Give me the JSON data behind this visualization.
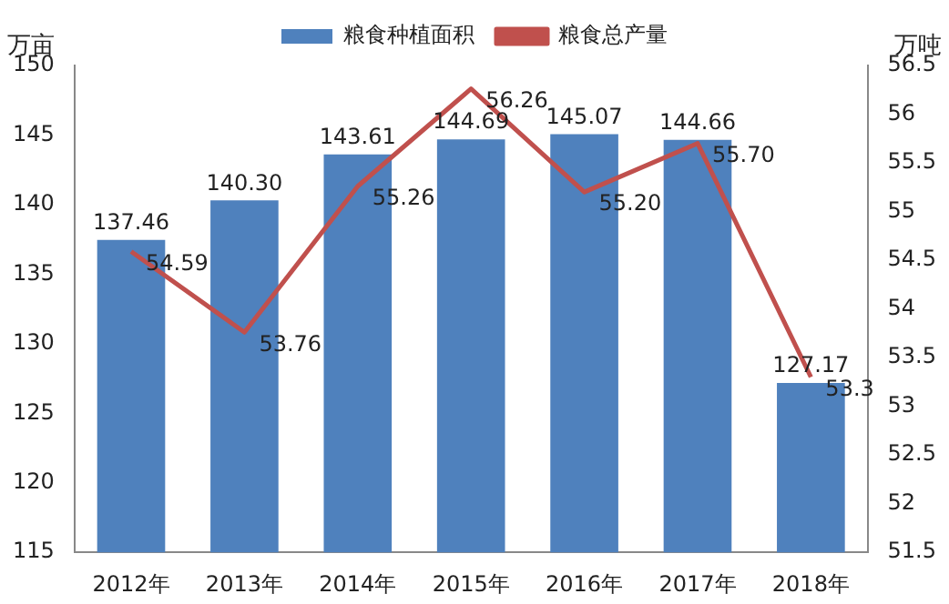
{
  "chart_data": {
    "type": "bar",
    "ylabel": "万亩",
    "y2label": "万吨",
    "categories": [
      "2012年",
      "2013年",
      "2014年",
      "2015年",
      "2016年",
      "2017年",
      "2018年"
    ],
    "series": [
      {
        "name": "粮食种植面积",
        "color": "#4f81bd",
        "values": [
          137.46,
          140.3,
          143.61,
          144.69,
          145.07,
          144.66,
          127.17
        ],
        "value_labels": [
          "137.46",
          "140.30",
          "143.61",
          "144.69",
          "145.07",
          "144.66",
          "127.17"
        ]
      },
      {
        "name": "粮食总产量",
        "type": "line",
        "axis": "y2",
        "color": "#c0504d",
        "values": [
          54.59,
          53.76,
          55.26,
          56.26,
          55.2,
          55.7,
          53.3
        ],
        "value_labels": [
          "54.59",
          "53.76",
          "55.26",
          "56.26",
          "55.20",
          "55.70",
          "53.3"
        ]
      }
    ],
    "ylim": [
      115,
      150
    ],
    "yticks": [
      115,
      120,
      125,
      130,
      135,
      140,
      145,
      150
    ],
    "y2lim": [
      51.5,
      56.5
    ],
    "y2ticks": [
      51.5,
      52,
      52.5,
      53,
      53.5,
      54,
      54.5,
      55,
      55.5,
      56,
      56.5
    ],
    "legend": "top",
    "grid": false,
    "marker": "none"
  }
}
